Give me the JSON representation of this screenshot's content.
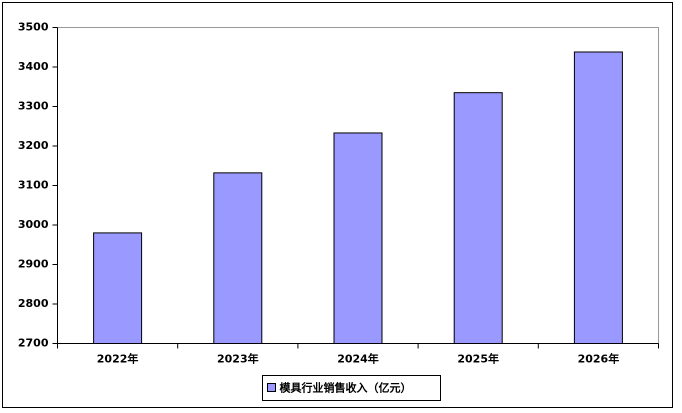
{
  "chart_data": {
    "type": "bar",
    "categories": [
      "2022年",
      "2023年",
      "2024年",
      "2025年",
      "2026年"
    ],
    "series": [
      {
        "name": "模具行业销售收入（亿元）",
        "color": "#9999ff",
        "values": [
          2980,
          3132,
          3233,
          3335,
          3438
        ]
      }
    ],
    "ylim": [
      2700,
      3500
    ],
    "yticks": [
      2700,
      2800,
      2900,
      3000,
      3100,
      3200,
      3300,
      3400,
      3500
    ],
    "grid": false,
    "legend": "bottom"
  }
}
